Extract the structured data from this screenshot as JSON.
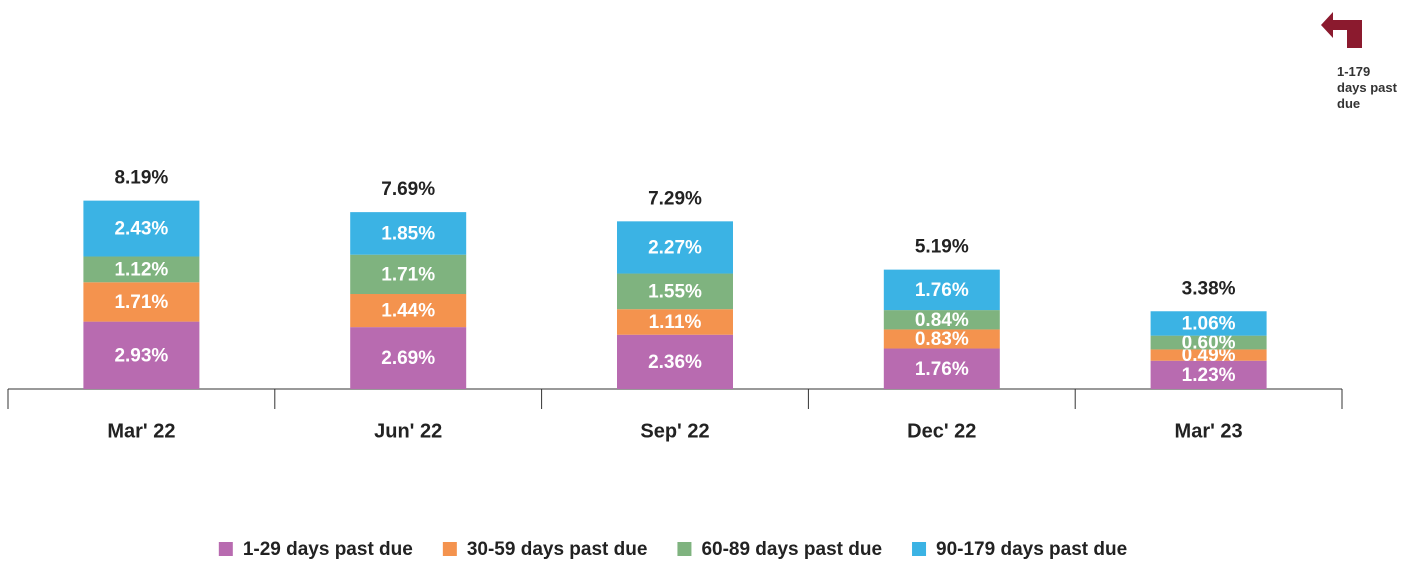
{
  "chart_data": {
    "type": "stacked_bar",
    "annotation": "1-179 days past due",
    "categories": [
      "Mar' 22",
      "Jun' 22",
      "Sep' 22",
      "Dec' 22",
      "Mar' 23"
    ],
    "series": [
      {
        "name": "1-29 days past due",
        "color": "#b86bb0",
        "values": [
          2.93,
          2.69,
          2.36,
          1.76,
          1.23
        ],
        "value_labels": [
          "2.93%",
          "2.69%",
          "2.36%",
          "1.76%",
          "1.23%"
        ]
      },
      {
        "name": "30-59 days past due",
        "color": "#f4934e",
        "values": [
          1.71,
          1.44,
          1.11,
          0.83,
          0.49
        ],
        "value_labels": [
          "1.71%",
          "1.44%",
          "1.11%",
          "0.83%",
          "0.49%"
        ]
      },
      {
        "name": "60-89 days past due",
        "color": "#7fb37f",
        "values": [
          1.12,
          1.71,
          1.55,
          0.84,
          0.6
        ],
        "value_labels": [
          "1.12%",
          "1.71%",
          "1.55%",
          "0.84%",
          "0.60%"
        ]
      },
      {
        "name": "90-179 days past due",
        "color": "#3bb3e4",
        "values": [
          2.43,
          1.85,
          2.27,
          1.76,
          1.06
        ],
        "value_labels": [
          "2.43%",
          "1.85%",
          "2.27%",
          "1.76%",
          "1.06%"
        ]
      }
    ],
    "totals": [
      8.19,
      7.69,
      7.29,
      5.19,
      3.38
    ],
    "total_labels": [
      "8.19%",
      "7.69%",
      "7.29%",
      "5.19%",
      "3.38%"
    ]
  }
}
